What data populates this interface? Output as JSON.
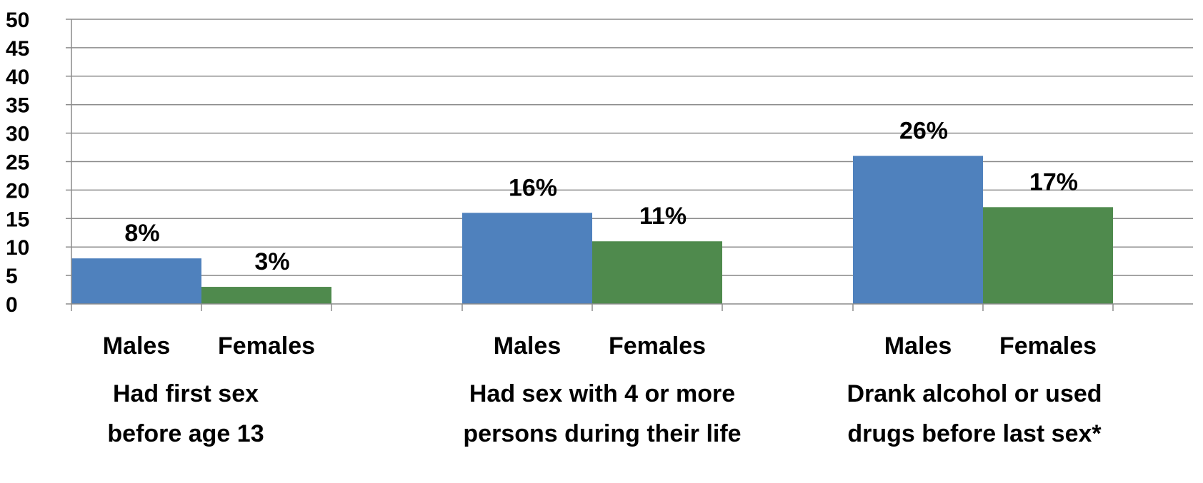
{
  "chart_data": {
    "type": "bar",
    "ylim": [
      0,
      50
    ],
    "yticks": [
      "0",
      "5",
      "10",
      "15",
      "20",
      "25",
      "30",
      "35",
      "40",
      "45",
      "50"
    ],
    "grid": true,
    "legend": "none",
    "groups": [
      {
        "label_lines": [
          "Had first sex",
          "before age 13"
        ],
        "bars": [
          {
            "category": "Males",
            "value": 8,
            "label": "8%",
            "color": "#4f81bd"
          },
          {
            "category": "Females",
            "value": 3,
            "label": "3%",
            "color": "#4f8a4d"
          }
        ]
      },
      {
        "label_lines": [
          "Had sex with 4 or more",
          "persons during their life"
        ],
        "bars": [
          {
            "category": "Males",
            "value": 16,
            "label": "16%",
            "color": "#4f81bd"
          },
          {
            "category": "Females",
            "value": 11,
            "label": "11%",
            "color": "#4f8a4d"
          }
        ]
      },
      {
        "label_lines": [
          "Drank alcohol or used",
          "drugs before last sex*"
        ],
        "bars": [
          {
            "category": "Males",
            "value": 26,
            "label": "26%",
            "color": "#4f81bd"
          },
          {
            "category": "Females",
            "value": 17,
            "label": "17%",
            "color": "#4f8a4d"
          }
        ]
      }
    ]
  }
}
